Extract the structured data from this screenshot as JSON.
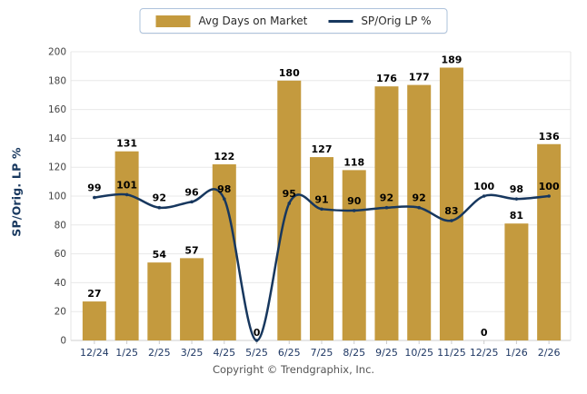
{
  "legend": {
    "items": [
      {
        "label": "Avg Days on Market",
        "type": "bar"
      },
      {
        "label": "SP/Orig LP %",
        "type": "line"
      }
    ]
  },
  "y_axis_title": "SP/Orig. LP %",
  "footer": {
    "copyright": "Copyright © Trendgraphix, Inc."
  },
  "colors": {
    "bar": "#c49a3e",
    "line": "#17375e",
    "grid": "#e8e8e8",
    "axis_line": "#cfcfcf",
    "y_tick_text": "#444444",
    "x_tick_text": "#1f3864",
    "data_label": "#000000",
    "legend_border": "#aec3dc",
    "footer_text": "#555555",
    "y_title_text": "#17375e"
  },
  "chart_data": {
    "type": "combo",
    "categories": [
      "12/24",
      "1/25",
      "2/25",
      "3/25",
      "4/25",
      "5/25",
      "6/25",
      "7/25",
      "8/25",
      "9/25",
      "10/25",
      "11/25",
      "12/25",
      "1/26",
      "2/26"
    ],
    "series": [
      {
        "name": "Avg Days on Market",
        "type": "bar",
        "color": "#c49a3e",
        "values": [
          27,
          131,
          54,
          57,
          122,
          0,
          180,
          127,
          118,
          176,
          177,
          189,
          0,
          81,
          136
        ]
      },
      {
        "name": "SP/Orig LP %",
        "type": "line",
        "color": "#17375e",
        "values": [
          99,
          101,
          92,
          96,
          98,
          0,
          95,
          91,
          90,
          92,
          92,
          83,
          100,
          98,
          100
        ]
      }
    ],
    "ylabel": "SP/Orig. LP %",
    "xlabel": "",
    "ylim": [
      0,
      200
    ],
    "ytick_step": 20,
    "grid": true,
    "legend_position": "top",
    "data_labels": true
  }
}
